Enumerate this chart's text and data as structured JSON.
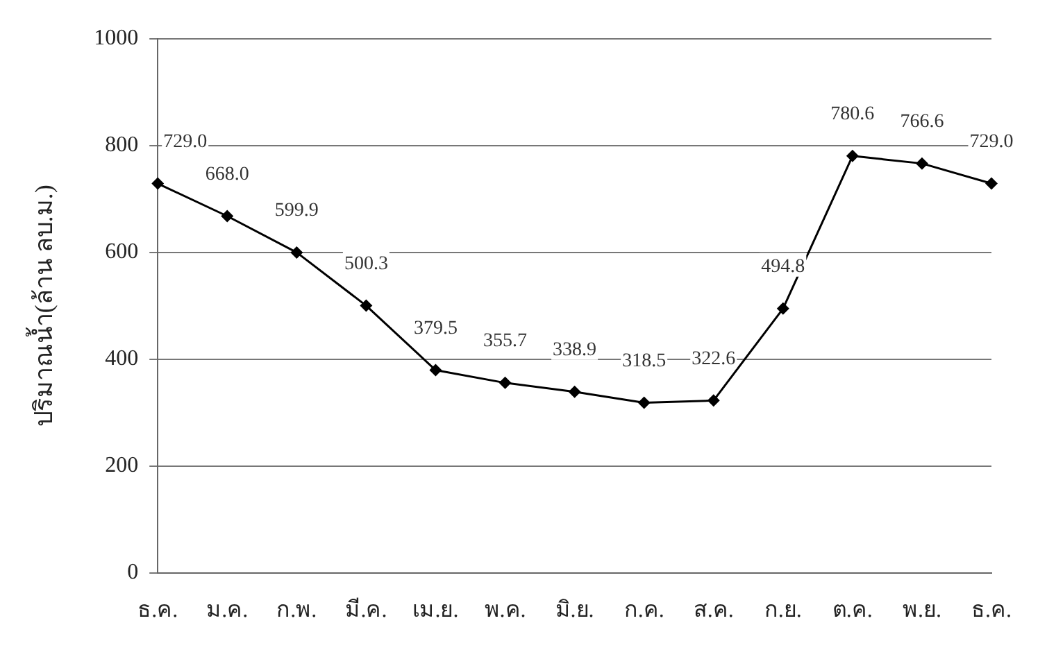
{
  "chart_data": {
    "type": "line",
    "ylabel": "ปริมาณน้ำ(ล้าน ลบ.ม.)",
    "categories": [
      "ธ.ค.",
      "ม.ค.",
      "ก.พ.",
      "มี.ค.",
      "เม.ย.",
      "พ.ค.",
      "มิ.ย.",
      "ก.ค.",
      "ส.ค.",
      "ก.ย.",
      "ต.ค.",
      "พ.ย.",
      "ธ.ค."
    ],
    "series": [
      {
        "color": "#000000",
        "values": [
          729.0,
          668.0,
          599.9,
          500.3,
          379.5,
          355.7,
          338.9,
          318.5,
          322.6,
          494.8,
          780.6,
          766.6,
          729.0
        ]
      }
    ],
    "value_labels": [
      "729.0",
      "668.0",
      "599.9",
      "500.3",
      "379.5",
      "355.7",
      "338.9",
      "318.5",
      "322.6",
      "494.8",
      "780.6",
      "766.6",
      "729.0"
    ],
    "ylim": [
      0,
      1000
    ],
    "yticks": [
      0,
      200,
      400,
      600,
      800,
      1000
    ],
    "grid": "y",
    "legend": false,
    "marker": "diamond",
    "line_style": "solid"
  }
}
